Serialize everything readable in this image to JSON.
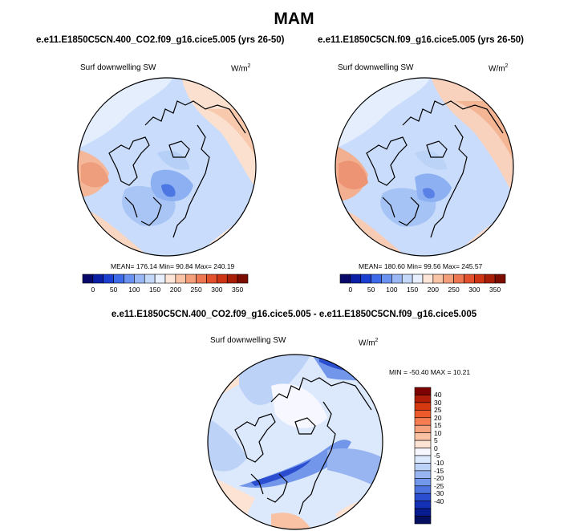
{
  "title": "MAM",
  "panels": [
    {
      "case": "e.e11.E1850C5CN.400_CO2.f09_g16.cice5.005 (yrs 26-50)",
      "variable": "Surf downwelling SW",
      "units": "W/m",
      "units_sup": "2",
      "stats": "MEAN= 176.14  Min=  90.84  Max= 240.19",
      "mean": 176.14,
      "min": 90.84,
      "max": 240.19
    },
    {
      "case": "e.e11.E1850C5CN.f09_g16.cice5.005 (yrs 26-50)",
      "variable": "Surf downwelling SW",
      "units": "W/m",
      "units_sup": "2",
      "stats": "MEAN= 180.60  Min=  99.56  Max= 245.57",
      "mean": 180.6,
      "min": 99.56,
      "max": 245.57
    }
  ],
  "colorbar": {
    "ticks": [
      "0",
      "50",
      "100",
      "150",
      "200",
      "250",
      "300",
      "350"
    ],
    "colors": [
      "#08086b",
      "#0a1fa6",
      "#1a3fd1",
      "#3d6ae8",
      "#6a92f0",
      "#9ab8f5",
      "#c4d8fa",
      "#e8f0ff",
      "#fde6d8",
      "#f9c3a6",
      "#f49e7a",
      "#ee7650",
      "#e2512c",
      "#cc3414",
      "#a81d06",
      "#7d0c00"
    ]
  },
  "diff": {
    "title": "e.e11.E1850C5CN.400_CO2.f09_g16.cice5.005 - e.e11.E1850C5CN.f09_g16.cice5.005",
    "variable": "Surf downwelling SW",
    "units": "W/m",
    "units_sup": "2",
    "stats": "MIN = -50.40 MAX =  10.21",
    "min": -50.4,
    "max": 10.21,
    "colorbar": {
      "ticks": [
        "40",
        "30",
        "25",
        "20",
        "15",
        "10",
        "5",
        "0",
        "-5",
        "-10",
        "-15",
        "-20",
        "-25",
        "-30",
        "-40"
      ],
      "colors": [
        "#7d0000",
        "#b01e0a",
        "#d4380f",
        "#ec5a2c",
        "#f47e52",
        "#f7a17d",
        "#f9c2a5",
        "#fde3d3",
        "#f7f7ff",
        "#dce8fc",
        "#bcd2f7",
        "#98b5f1",
        "#7196ea",
        "#4c73de",
        "#2a4ecf",
        "#1430b5",
        "#081b8f",
        "#050f62"
      ]
    }
  }
}
